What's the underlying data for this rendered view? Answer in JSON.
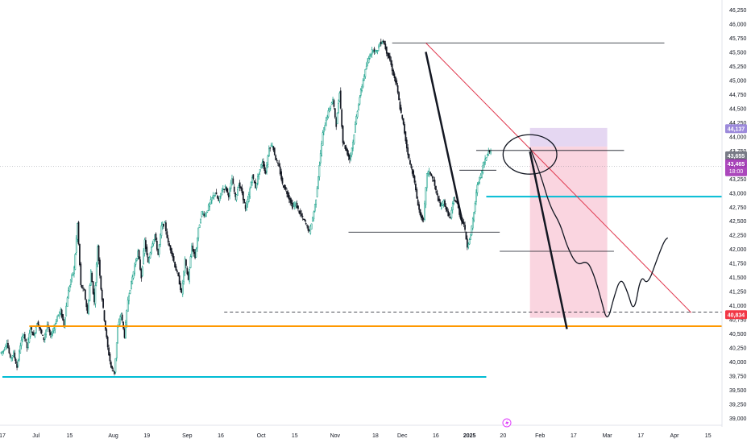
{
  "chart_data": {
    "type": "candlestick",
    "y_axis": {
      "min": 39000,
      "max": 46250,
      "position": "right",
      "ticks": [
        "46,250",
        "46,000",
        "45,750",
        "45,500",
        "45,250",
        "45,000",
        "44,750",
        "44,500",
        "44,250",
        "44,000",
        "43,750",
        "43,500",
        "43,250",
        "43,000",
        "42,750",
        "42,500",
        "42,250",
        "42,000",
        "41,750",
        "41,500",
        "41,250",
        "41,000",
        "40,750",
        "40,500",
        "40,250",
        "40,000",
        "39,750",
        "39,500",
        "39,250",
        "39,000"
      ]
    },
    "x_axis": {
      "ticks": [
        {
          "label": "17",
          "i": 0
        },
        {
          "label": "Jul",
          "i": 10
        },
        {
          "label": "15",
          "i": 20
        },
        {
          "label": "Aug",
          "i": 33
        },
        {
          "label": "19",
          "i": 43
        },
        {
          "label": "Sep",
          "i": 55
        },
        {
          "label": "16",
          "i": 65
        },
        {
          "label": "Oct",
          "i": 77
        },
        {
          "label": "15",
          "i": 87
        },
        {
          "label": "Nov",
          "i": 99
        },
        {
          "label": "18",
          "i": 111
        },
        {
          "label": "Dec",
          "i": 119
        },
        {
          "label": "16",
          "i": 129
        },
        {
          "label": "2025",
          "i": 139
        },
        {
          "label": "20",
          "i": 149
        },
        {
          "label": "Feb",
          "i": 160
        },
        {
          "label": "17",
          "i": 170
        },
        {
          "label": "Mar",
          "i": 180
        },
        {
          "label": "17",
          "i": 190
        },
        {
          "label": "Apr",
          "i": 200
        },
        {
          "label": "15",
          "i": 210
        }
      ]
    },
    "close_series": [
      40200,
      40350,
      40050,
      40150,
      39900,
      40300,
      40500,
      40250,
      40600,
      40450,
      40700,
      40550,
      40400,
      40650,
      40450,
      40600,
      40800,
      40900,
      40650,
      41150,
      41450,
      41650,
      42450,
      41350,
      41250,
      40850,
      41600,
      41050,
      42050,
      41300,
      40750,
      40250,
      39900,
      39800,
      40600,
      40850,
      40450,
      41100,
      41400,
      41700,
      41950,
      41500,
      42150,
      41750,
      42050,
      42250,
      41900,
      42400,
      42450,
      42100,
      41950,
      41700,
      41500,
      41200,
      41800,
      41450,
      42050,
      41850,
      42350,
      42650,
      42600,
      42750,
      42900,
      43000,
      42850,
      43050,
      43100,
      42950,
      43250,
      42900,
      43150,
      43000,
      42700,
      42950,
      43300,
      43100,
      43350,
      43550,
      43350,
      43800,
      43850,
      43600,
      43450,
      43150,
      43050,
      42900,
      42750,
      42800,
      42650,
      42550,
      42450,
      42300,
      42550,
      42900,
      43500,
      44050,
      44300,
      44500,
      44650,
      44200,
      44800,
      43900,
      43750,
      43600,
      43900,
      44350,
      44700,
      45000,
      45250,
      45450,
      45550,
      45500,
      45650,
      45700,
      45500,
      45350,
      45100,
      44900,
      44500,
      44200,
      43800,
      43500,
      43300,
      42900,
      42600,
      42500,
      43350,
      43350,
      43200,
      42950,
      42750,
      42850,
      42650,
      42550,
      42900,
      42800,
      42550,
      42450,
      42050,
      42250,
      42650,
      43150,
      43300,
      43550,
      43700,
      43750
    ],
    "current_price": "43,465",
    "countdown": "18:00",
    "price_labels": [
      {
        "text": "44,137",
        "value": 44137,
        "color": "#9c8adb"
      },
      {
        "text": "43,655",
        "value": 43655,
        "color": "#787b86"
      },
      {
        "text": "40,834",
        "value": 40834,
        "color": "#f23645"
      }
    ],
    "horizontal_levels": [
      {
        "name": "top-level-line",
        "value": 45660,
        "from_i": 116,
        "to_i": 197,
        "color": "#131722",
        "style": "solid"
      },
      {
        "name": "recent-high-line",
        "value": 43750,
        "from_i": 141,
        "to_i": 185,
        "color": "#131722",
        "style": "solid"
      },
      {
        "name": "support-line-43400",
        "value": 43400,
        "from_i": 136,
        "to_i": 147,
        "color": "#131722",
        "style": "solid"
      },
      {
        "name": "support-line-42300",
        "value": 42300,
        "from_i": 103,
        "to_i": 148,
        "color": "#131722",
        "style": "solid"
      },
      {
        "name": "support-line-41960",
        "value": 41960,
        "from_i": 148,
        "to_i": 182,
        "color": "#131722",
        "style": "solid"
      },
      {
        "name": "resistance-blue-line",
        "value": 42930,
        "from_i": 144,
        "to_i": 226,
        "color": "#00bcd4",
        "style": "solid",
        "width": 2
      },
      {
        "name": "support-blue-line",
        "value": 39730,
        "from_i": 0,
        "to_i": 144,
        "color": "#00bcd4",
        "style": "solid",
        "width": 2
      },
      {
        "name": "support-orange-line",
        "value": 40630,
        "from_i": 8,
        "to_i": 226,
        "color": "#ff9800",
        "style": "solid",
        "width": 2
      },
      {
        "name": "target-dashed-line",
        "value": 40880,
        "from_i": 66,
        "to_i": 226,
        "color": "#131722",
        "style": "dashed"
      }
    ],
    "trend_lines": [
      {
        "name": "red-downtrend-line",
        "x1": 126,
        "y1": 45660,
        "x2": 205,
        "y2": 40870,
        "color": "#e03a50",
        "width": 1
      },
      {
        "name": "black-impulse-line-1",
        "x1": 126,
        "y1": 45500,
        "x2": 137,
        "y2": 42450,
        "color": "#131722",
        "width": 2.5
      },
      {
        "name": "black-impulse-line-2",
        "x1": 157,
        "y1": 43730,
        "x2": 168,
        "y2": 40580,
        "color": "#131722",
        "width": 2.5
      }
    ],
    "zones": [
      {
        "name": "pink-zone",
        "x1": 157,
        "x2": 180,
        "y_low": 40780,
        "y_high": 43820,
        "color": "#f8c7d6"
      },
      {
        "name": "purple-zone",
        "x1": 157,
        "x2": 180,
        "y_low": 43820,
        "y_high": 44150,
        "color": "#dcc9ee"
      }
    ],
    "projection_path": [
      [
        157,
        43800
      ],
      [
        160,
        43350
      ],
      [
        163,
        42750
      ],
      [
        166,
        42450
      ],
      [
        168,
        42050
      ],
      [
        171,
        41700
      ],
      [
        174,
        41800
      ],
      [
        176,
        41550
      ],
      [
        178,
        41150
      ],
      [
        180,
        40680
      ],
      [
        182,
        41150
      ],
      [
        184,
        41500
      ],
      [
        186,
        41250
      ],
      [
        188,
        40850
      ],
      [
        190,
        41550
      ],
      [
        192,
        41350
      ],
      [
        195,
        41850
      ],
      [
        197,
        42150
      ],
      [
        198,
        42200
      ]
    ],
    "circle_annotation": {
      "cx_i": 157,
      "value": 43680,
      "rx_i": 8,
      "ry_value": 350
    },
    "logo_icon": "lightning-icon"
  }
}
